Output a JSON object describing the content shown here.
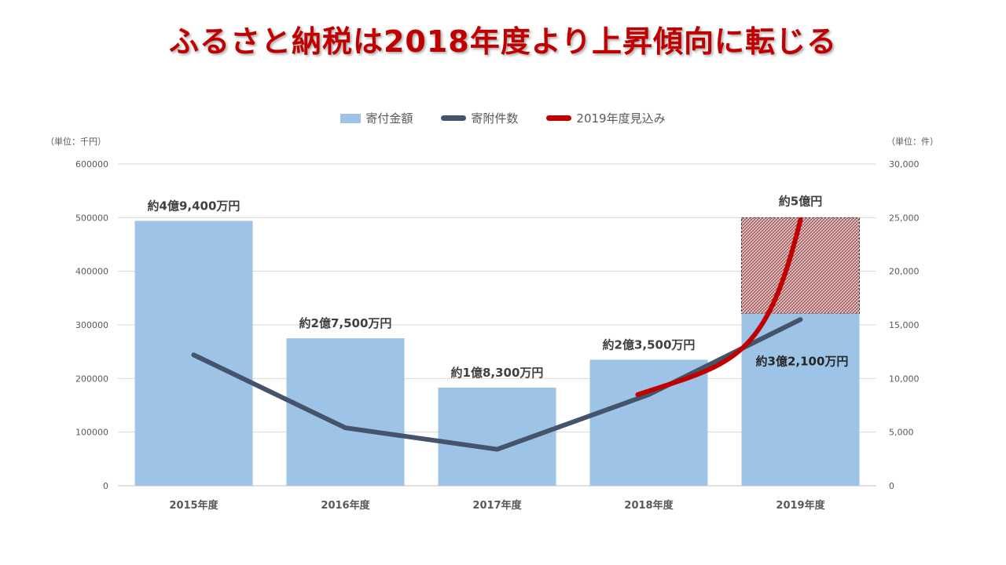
{
  "title": "ふるさと納税は2018年度より上昇傾向に転じる",
  "legend": {
    "bar_label": "寄付金額",
    "count_label": "寄附件数",
    "forecast_label": "2019年度見込み"
  },
  "units": {
    "left": "（単位：千円）",
    "right": "（単位：件）"
  },
  "colors": {
    "bar": "#9dc3e6",
    "count_line": "#44546a",
    "forecast_line": "#c00000",
    "title": "#c00000"
  },
  "chart_data": {
    "type": "bar",
    "categories": [
      "2015年度",
      "2016年度",
      "2017年度",
      "2018年度",
      "2019年度"
    ],
    "series": [
      {
        "name": "寄付金額",
        "axis": "left",
        "values": [
          494000,
          275000,
          183000,
          235000,
          321000
        ],
        "labels": [
          "約4億9,400万円",
          "約2億7,500万円",
          "約1億8,300万円",
          "約2億3,500万円",
          "約3億2,100万円"
        ]
      },
      {
        "name": "寄附件数",
        "type": "line",
        "axis": "right",
        "values": [
          12200,
          5400,
          3400,
          8500,
          15500
        ]
      },
      {
        "name": "2019年度見込み",
        "type": "line",
        "axis": "right",
        "points": [
          {
            "x": "2018年度",
            "y": 8500
          },
          {
            "x": "2019年度",
            "y": 24800
          }
        ]
      }
    ],
    "forecast_bar": {
      "category": "2019年度",
      "value": 500000,
      "label": "約5億円"
    },
    "y_left": {
      "min": 0,
      "max": 600000,
      "ticks": [
        "0",
        "100000",
        "200000",
        "300000",
        "400000",
        "500000",
        "600000"
      ]
    },
    "y_right": {
      "min": 0,
      "max": 30000,
      "ticks": [
        "0",
        "5,000",
        "10,000",
        "15,000",
        "20,000",
        "25,000",
        "30,000"
      ]
    },
    "grid": true,
    "legend_position": "top"
  }
}
